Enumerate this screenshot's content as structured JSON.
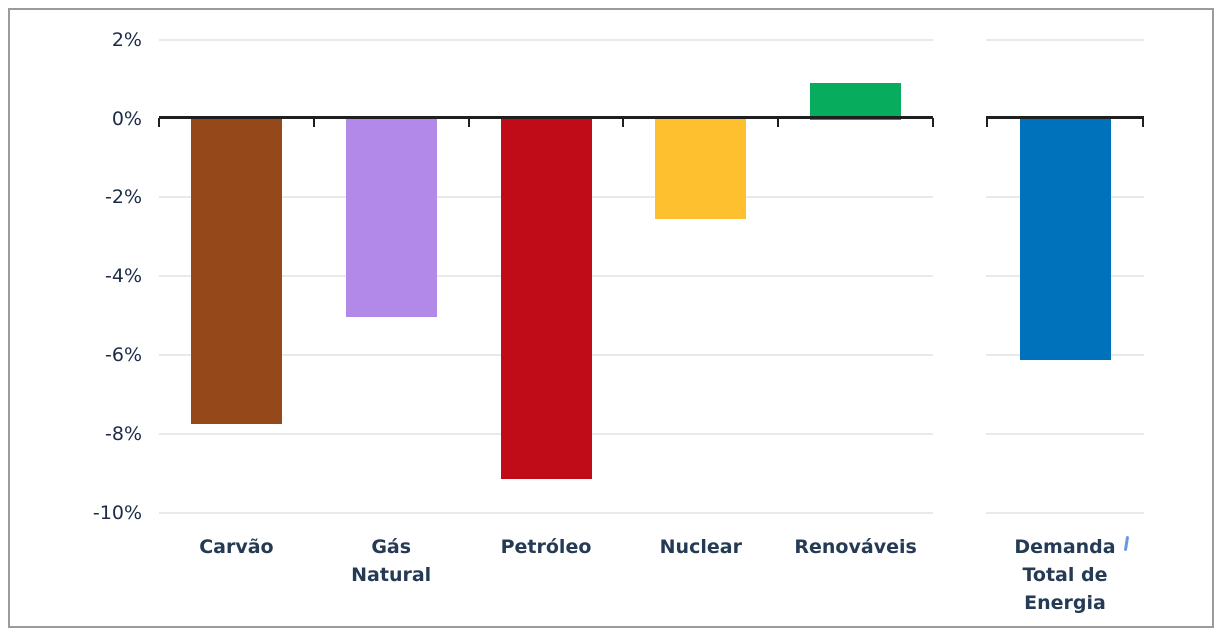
{
  "frame": {
    "border_color": "#9b9b9b",
    "background_color": "#ffffff"
  },
  "chart_data": {
    "type": "bar",
    "title": "",
    "xlabel": "",
    "ylabel": "",
    "unit": "%",
    "categories": [
      "Carvão",
      "Gás\nNatural",
      "Petróleo",
      "Nuclear",
      "Renováveis",
      "Demanda\nTotal de\nEnergia"
    ],
    "values": [
      -7.7,
      -5.0,
      -9.1,
      -2.5,
      0.9,
      -6.1
    ],
    "bar_colors": [
      "#95491B",
      "#B289E8",
      "#C00B18",
      "#FFC02F",
      "#07AC5C",
      "#0072BC"
    ],
    "y_ticks": [
      {
        "label": "2%",
        "value": 2
      },
      {
        "label": "0%",
        "value": 0
      },
      {
        "label": "-2%",
        "value": -2
      },
      {
        "label": "-4%",
        "value": -4
      },
      {
        "label": "-6%",
        "value": -6
      },
      {
        "label": "-8%",
        "value": -8
      },
      {
        "label": "-10%",
        "value": -10
      }
    ],
    "ylim": [
      -10,
      2
    ],
    "grid": true,
    "legend": "none",
    "last_category_separated": true,
    "colors": {
      "axis": "#1f1f1f",
      "gridline": "#e9e9e9",
      "y_tick_label": "#1c2b47",
      "category_label": "#253a54"
    }
  },
  "stray_mark": {
    "color": "#4a86e0"
  }
}
